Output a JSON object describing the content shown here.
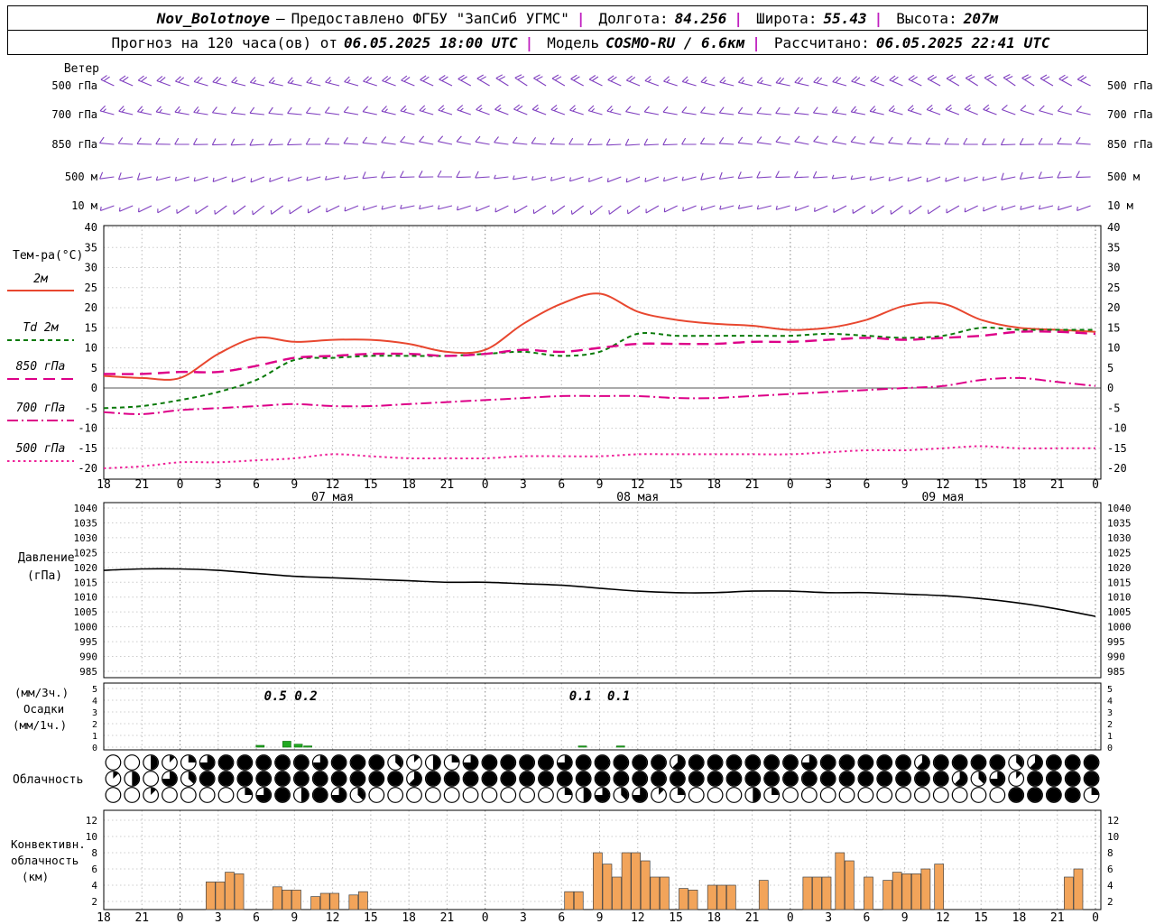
{
  "header": {
    "row1": {
      "station": "Nov_Bolotnoye",
      "dash": "—",
      "provided": "Предоставлено ФГБУ \"ЗапСиб УГМС\"",
      "sep": "|",
      "lon_label": "Долгота:",
      "lon_value": "84.256",
      "lat_label": "Широта:",
      "lat_value": "55.43",
      "alt_label": "Высота:",
      "alt_value": "207м"
    },
    "row2": {
      "forecast_label": "Прогноз на 120 часа(ов) от",
      "forecast_start": "06.05.2025 18:00 UTC",
      "sep": "|",
      "model_label": "Модель",
      "model_value": "COSMO-RU / 6.6км",
      "calc_label": "Рассчитано:",
      "calc_value": "06.05.2025 22:41 UTC"
    }
  },
  "colors": {
    "wind_barb": "#8040c0",
    "temp_2m": "#e8472f",
    "dewpoint": "#0a7a0a",
    "temp_850": "#dd0088",
    "temp_700": "#dd0088",
    "temp_500": "#ee2299",
    "pressure": "#000000",
    "precip": "#22aa22",
    "convective": "#f2a45a",
    "header_sep": "#c020c0"
  },
  "axis": {
    "hour_labels": [
      "18",
      "21",
      "0",
      "3",
      "6",
      "9",
      "12",
      "15",
      "18",
      "21",
      "0",
      "3",
      "6",
      "9",
      "12",
      "15",
      "18",
      "21",
      "0",
      "3",
      "6",
      "9",
      "12",
      "15",
      "18",
      "21",
      "0"
    ],
    "date_labels": [
      {
        "label": "07 мая",
        "tick": 6
      },
      {
        "label": "08 мая",
        "tick": 14
      },
      {
        "label": "09 мая",
        "tick": 22
      }
    ]
  },
  "chart_data": [
    {
      "id": "wind",
      "type": "wind-barbs",
      "title": "Ветер",
      "levels": [
        {
          "name": "500 гПа",
          "dirs": [
            295,
            292,
            288,
            285,
            283,
            282,
            284,
            288,
            292,
            296,
            300,
            303,
            300,
            296,
            292,
            288,
            285,
            283,
            282,
            284,
            288,
            293,
            298,
            302,
            304,
            300,
            296
          ],
          "speeds": [
            20,
            20,
            18,
            18,
            15,
            15,
            15,
            18,
            20,
            20,
            22,
            22,
            20,
            18,
            18,
            15,
            15,
            15,
            18,
            18,
            20,
            20,
            22,
            20,
            20,
            18,
            18
          ]
        },
        {
          "name": "700 гПа",
          "dirs": [
            285,
            282,
            280,
            278,
            276,
            275,
            278,
            282,
            285,
            288,
            290,
            292,
            290,
            286,
            282,
            280,
            278,
            276,
            275,
            277,
            281,
            286,
            290,
            292,
            290,
            286,
            283
          ],
          "speeds": [
            15,
            15,
            15,
            12,
            12,
            10,
            10,
            12,
            15,
            15,
            15,
            18,
            15,
            15,
            12,
            12,
            10,
            10,
            12,
            12,
            15,
            15,
            15,
            15,
            12,
            12,
            12
          ]
        },
        {
          "name": "850 гПа",
          "dirs": [
            275,
            272,
            270,
            268,
            266,
            268,
            272,
            276,
            280,
            282,
            280,
            276,
            272,
            268,
            266,
            268,
            272,
            276,
            280,
            282,
            280,
            276,
            272,
            270,
            268,
            270,
            274
          ],
          "speeds": [
            10,
            10,
            10,
            8,
            8,
            8,
            10,
            10,
            12,
            12,
            10,
            10,
            8,
            8,
            8,
            10,
            10,
            10,
            12,
            10,
            10,
            8,
            8,
            10,
            10,
            10,
            10
          ]
        },
        {
          "name": "500 м",
          "dirs": [
            262,
            258,
            254,
            250,
            248,
            252,
            258,
            264,
            268,
            270,
            266,
            260,
            254,
            250,
            248,
            252,
            258,
            264,
            268,
            266,
            260,
            254,
            250,
            252,
            258,
            264,
            268
          ],
          "speeds": [
            8,
            8,
            6,
            6,
            5,
            5,
            6,
            8,
            8,
            10,
            8,
            6,
            6,
            5,
            5,
            6,
            8,
            8,
            10,
            8,
            6,
            6,
            5,
            6,
            8,
            8,
            8
          ]
        },
        {
          "name": "10 м",
          "dirs": [
            250,
            244,
            238,
            234,
            232,
            236,
            244,
            252,
            258,
            256,
            248,
            240,
            234,
            232,
            236,
            244,
            252,
            258,
            254,
            246,
            238,
            234,
            236,
            244,
            252,
            256,
            250
          ],
          "speeds": [
            5,
            5,
            5,
            3,
            3,
            3,
            5,
            5,
            6,
            6,
            5,
            5,
            3,
            3,
            3,
            5,
            5,
            6,
            5,
            5,
            3,
            3,
            3,
            5,
            5,
            5,
            5
          ]
        }
      ]
    },
    {
      "id": "temperature",
      "type": "line",
      "title": "Тем-ра(°C)",
      "ylim": [
        -20,
        40
      ],
      "ytick_step": 5,
      "series": [
        {
          "name": "2м",
          "style": "solid",
          "color_key": "temp_2m",
          "values": [
            3,
            2.5,
            2.5,
            8.5,
            12.5,
            11.5,
            12,
            12,
            11,
            9,
            9.5,
            16,
            21,
            23.5,
            19,
            17,
            16,
            15.5,
            14.5,
            15,
            17,
            20.5,
            21,
            17,
            15,
            14.5,
            14
          ]
        },
        {
          "name": "Td 2м",
          "style": "dashed",
          "color_key": "dewpoint",
          "values": [
            -5,
            -4.5,
            -3,
            -1,
            2,
            7,
            7.5,
            8,
            8,
            8,
            8.5,
            9,
            8,
            9,
            13.5,
            13,
            13,
            13,
            13,
            13.5,
            13,
            12.5,
            13,
            15,
            14.5,
            14.5,
            14.5
          ]
        },
        {
          "name": "850 гПа",
          "style": "longdash",
          "color_key": "temp_850",
          "values": [
            3.5,
            3.5,
            4,
            4,
            5.5,
            7.5,
            8,
            8.5,
            8.5,
            8,
            8.5,
            9.5,
            9,
            10,
            11,
            11,
            11,
            11.5,
            11.5,
            12,
            12.5,
            12,
            12.5,
            13,
            14,
            14,
            13.5
          ]
        },
        {
          "name": "700 гПа",
          "style": "dashdot",
          "color_key": "temp_700",
          "values": [
            -6,
            -6.5,
            -5.5,
            -5,
            -4.5,
            -4,
            -4.5,
            -4.5,
            -4,
            -3.5,
            -3,
            -2.5,
            -2,
            -2,
            -2,
            -2.5,
            -2.5,
            -2,
            -1.5,
            -1,
            -0.5,
            0,
            0.5,
            2,
            2.5,
            1.5,
            0.5
          ]
        },
        {
          "name": "500 гПа",
          "style": "dotted",
          "color_key": "temp_500",
          "values": [
            -20,
            -19.5,
            -18.5,
            -18.5,
            -18,
            -17.5,
            -16.5,
            -17,
            -17.5,
            -17.5,
            -17.5,
            -17,
            -17,
            -17,
            -16.5,
            -16.5,
            -16.5,
            -16.5,
            -16.5,
            -16,
            -15.5,
            -15.5,
            -15,
            -14.5,
            -15,
            -15,
            -15
          ]
        }
      ]
    },
    {
      "id": "pressure",
      "type": "line",
      "title": "Давление (гПа)",
      "label_lines": [
        "Давление",
        "(гПа)"
      ],
      "ylim": [
        985,
        1040
      ],
      "ytick_step": 5,
      "values": [
        1019,
        1019.5,
        1019.5,
        1019,
        1018,
        1017,
        1016.5,
        1016,
        1015.5,
        1015,
        1015,
        1014.5,
        1014,
        1013,
        1012,
        1011.5,
        1011.5,
        1012,
        1012,
        1011.5,
        1011.5,
        1011,
        1010.5,
        1009.5,
        1008,
        1006,
        1003.5
      ]
    },
    {
      "id": "precipitation",
      "type": "bar",
      "title": "Осадки",
      "label_lines": [
        "(мм/3ч.)",
        "Осадки",
        "(мм/1ч.)"
      ],
      "ylim": [
        0,
        5
      ],
      "bars": [
        {
          "pos": 4.1,
          "value": 0.15
        },
        {
          "pos": 4.8,
          "value": 0.5
        },
        {
          "pos": 5.1,
          "value": 0.25
        },
        {
          "pos": 5.35,
          "value": 0.1
        },
        {
          "pos": 12.55,
          "value": 0.1
        },
        {
          "pos": 13.55,
          "value": 0.1
        }
      ],
      "labels": [
        {
          "text": "0.5",
          "pos": 4.5
        },
        {
          "text": "0.2",
          "pos": 5.3
        },
        {
          "text": "0.1",
          "pos": 12.5
        },
        {
          "text": "0.1",
          "pos": 13.5
        }
      ]
    },
    {
      "id": "cloudiness",
      "type": "symbols",
      "title": "Облачность",
      "scale": "oktas 0-8",
      "rows": [
        [
          0,
          0,
          4,
          1,
          2,
          6,
          8,
          8,
          8,
          8,
          8,
          6,
          8,
          8,
          8,
          3,
          1,
          4,
          2,
          6,
          8,
          8,
          8,
          8,
          6,
          8,
          8,
          8,
          8,
          8,
          5,
          8,
          8,
          8,
          8,
          8,
          8,
          6,
          8,
          8,
          8,
          8,
          8,
          5,
          8,
          8,
          8,
          8,
          3,
          5,
          8,
          8,
          8
        ],
        [
          1,
          4,
          0,
          6,
          3,
          8,
          8,
          8,
          8,
          8,
          8,
          8,
          8,
          8,
          8,
          8,
          5,
          8,
          8,
          8,
          8,
          8,
          8,
          8,
          8,
          8,
          8,
          8,
          8,
          8,
          8,
          8,
          8,
          8,
          8,
          8,
          8,
          8,
          8,
          8,
          8,
          8,
          8,
          8,
          8,
          5,
          3,
          6,
          1,
          8,
          8,
          8,
          8
        ],
        [
          0,
          0,
          1,
          0,
          0,
          0,
          0,
          2,
          6,
          8,
          4,
          8,
          6,
          3,
          0,
          0,
          0,
          0,
          0,
          0,
          0,
          0,
          0,
          0,
          2,
          4,
          6,
          3,
          6,
          1,
          2,
          0,
          0,
          0,
          4,
          2,
          0,
          0,
          0,
          0,
          0,
          0,
          0,
          0,
          0,
          0,
          0,
          0,
          8,
          8,
          8,
          8,
          2
        ]
      ]
    },
    {
      "id": "convective",
      "type": "bar",
      "title": "Конвективная облачность",
      "label_lines": [
        "Конвективн.",
        "облачность",
        "(км)"
      ],
      "ylim": [
        1,
        13
      ],
      "yticks": [
        2,
        4,
        6,
        8,
        10,
        12
      ],
      "bars": [
        {
          "pos": 2.8,
          "h": 4.4
        },
        {
          "pos": 3.05,
          "h": 4.4
        },
        {
          "pos": 3.3,
          "h": 5.6
        },
        {
          "pos": 3.55,
          "h": 5.4
        },
        {
          "pos": 4.55,
          "h": 3.8
        },
        {
          "pos": 4.8,
          "h": 3.4
        },
        {
          "pos": 5.05,
          "h": 3.4
        },
        {
          "pos": 5.55,
          "h": 2.6
        },
        {
          "pos": 5.8,
          "h": 3
        },
        {
          "pos": 6.05,
          "h": 3
        },
        {
          "pos": 6.55,
          "h": 2.8
        },
        {
          "pos": 6.8,
          "h": 3.2
        },
        {
          "pos": 12.2,
          "h": 3.2
        },
        {
          "pos": 12.45,
          "h": 3.2
        },
        {
          "pos": 12.95,
          "h": 8
        },
        {
          "pos": 13.2,
          "h": 6.6
        },
        {
          "pos": 13.45,
          "h": 5
        },
        {
          "pos": 13.7,
          "h": 8
        },
        {
          "pos": 13.95,
          "h": 8
        },
        {
          "pos": 14.2,
          "h": 7
        },
        {
          "pos": 14.45,
          "h": 5
        },
        {
          "pos": 14.7,
          "h": 5
        },
        {
          "pos": 15.2,
          "h": 3.6
        },
        {
          "pos": 15.45,
          "h": 3.4
        },
        {
          "pos": 15.95,
          "h": 4
        },
        {
          "pos": 16.2,
          "h": 4
        },
        {
          "pos": 16.45,
          "h": 4
        },
        {
          "pos": 17.3,
          "h": 4.6
        },
        {
          "pos": 18.45,
          "h": 5
        },
        {
          "pos": 18.7,
          "h": 5
        },
        {
          "pos": 18.95,
          "h": 5
        },
        {
          "pos": 19.3,
          "h": 8
        },
        {
          "pos": 19.55,
          "h": 7
        },
        {
          "pos": 20.05,
          "h": 5
        },
        {
          "pos": 20.55,
          "h": 4.6
        },
        {
          "pos": 20.8,
          "h": 5.6
        },
        {
          "pos": 21.05,
          "h": 5.4
        },
        {
          "pos": 21.3,
          "h": 5.4
        },
        {
          "pos": 21.55,
          "h": 6
        },
        {
          "pos": 21.9,
          "h": 6.6
        },
        {
          "pos": 25.3,
          "h": 5
        },
        {
          "pos": 25.55,
          "h": 6
        }
      ]
    }
  ]
}
